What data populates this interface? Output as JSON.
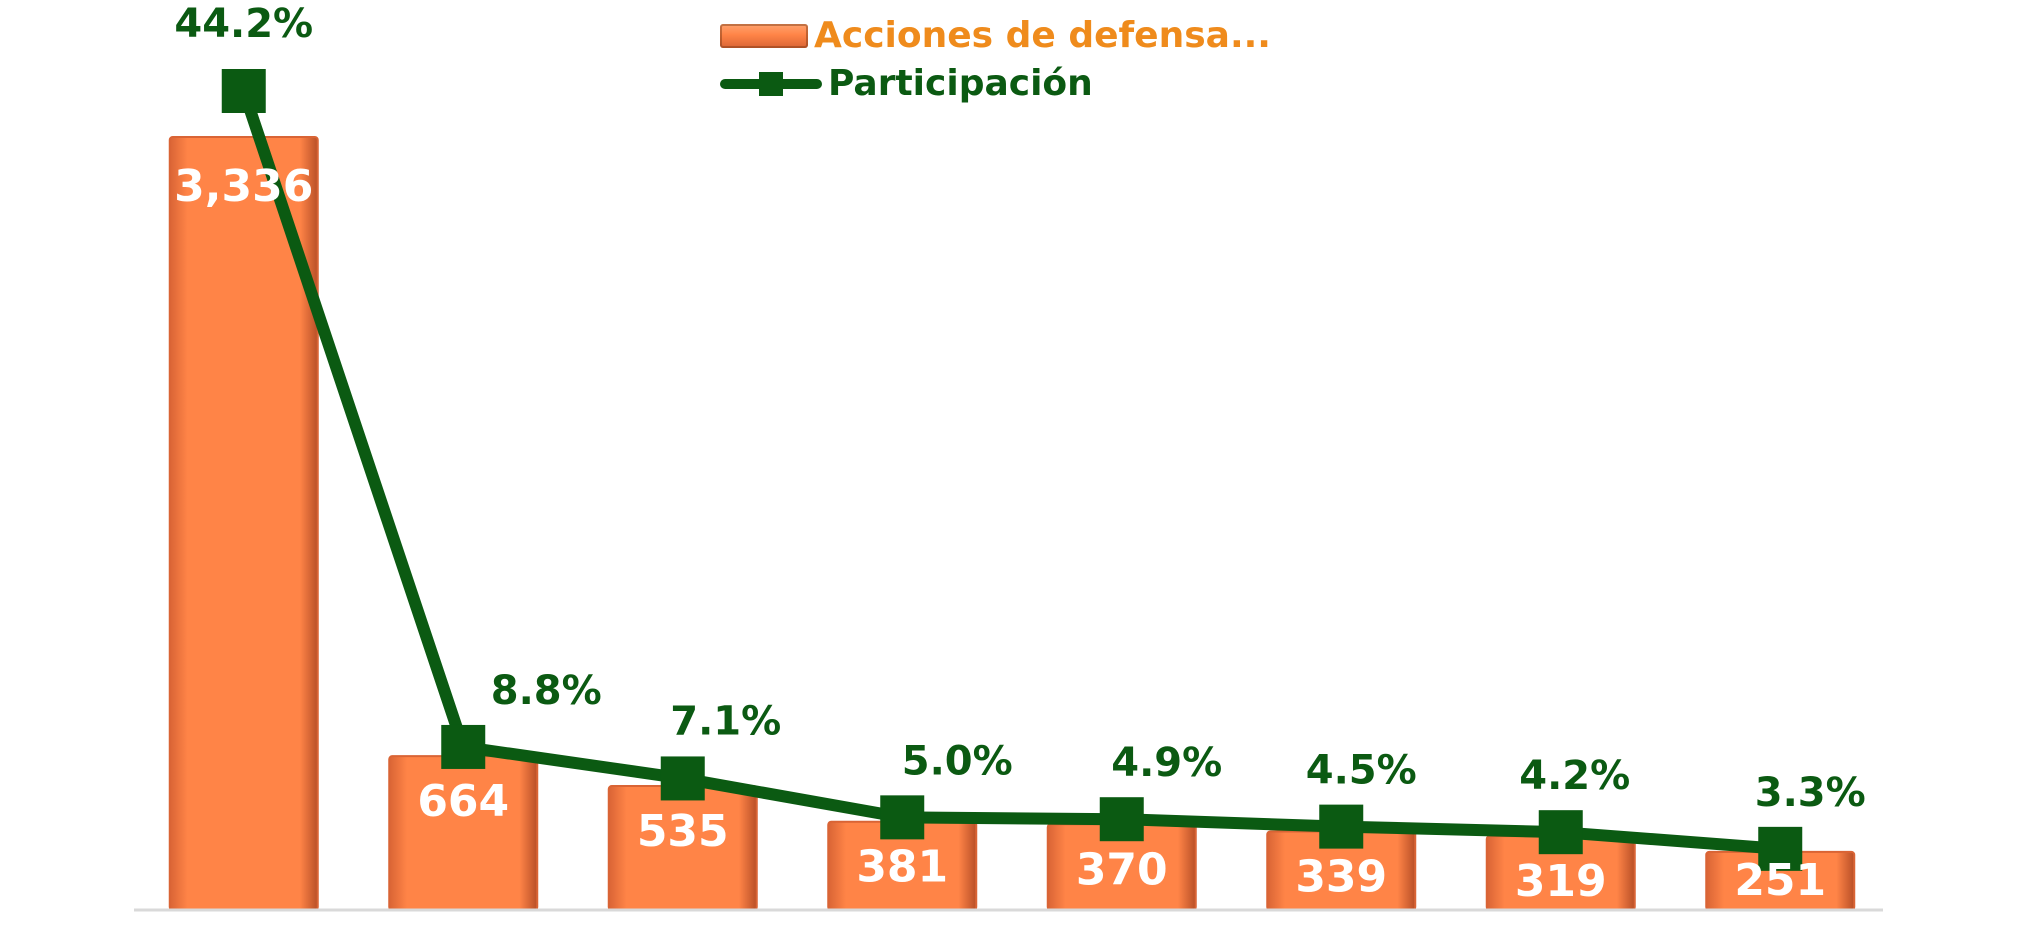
{
  "chart_data": {
    "type": "bar",
    "categories": [
      "",
      "",
      "",
      "",
      "",
      "",
      "",
      ""
    ],
    "series": [
      {
        "name": "Acciones de defensa...",
        "type": "bar",
        "values": [
          3336,
          664,
          535,
          381,
          370,
          339,
          319,
          251
        ],
        "labels": [
          "3,336",
          "664",
          "535",
          "381",
          "370",
          "339",
          "319",
          "251"
        ]
      },
      {
        "name": "Participación",
        "type": "line",
        "values": [
          44.2,
          8.8,
          7.1,
          5.0,
          4.9,
          4.5,
          4.2,
          3.3
        ],
        "labels": [
          "44.2%",
          "8.8%",
          "7.1%",
          "5.0%",
          "4.9%",
          "4.5%",
          "4.2%",
          "3.3%"
        ]
      }
    ],
    "legend": {
      "placement": "top-center",
      "items": [
        "Acciones de defensa...",
        "Participación"
      ]
    },
    "axes": {
      "primary_y_range": [
        0,
        3336
      ],
      "secondary_y_range": [
        0,
        44.2
      ]
    },
    "grid": false,
    "colors": {
      "bar_light": "#ffa36f",
      "bar_mid": "#ff8447",
      "bar_dark": "#d96435",
      "bar_text": "#ffffff",
      "line": "#0b5a12",
      "axis": "#d9d9d9",
      "legend_bar_text": "#ef8b1c",
      "legend_line_text": "#0b5a12"
    }
  }
}
